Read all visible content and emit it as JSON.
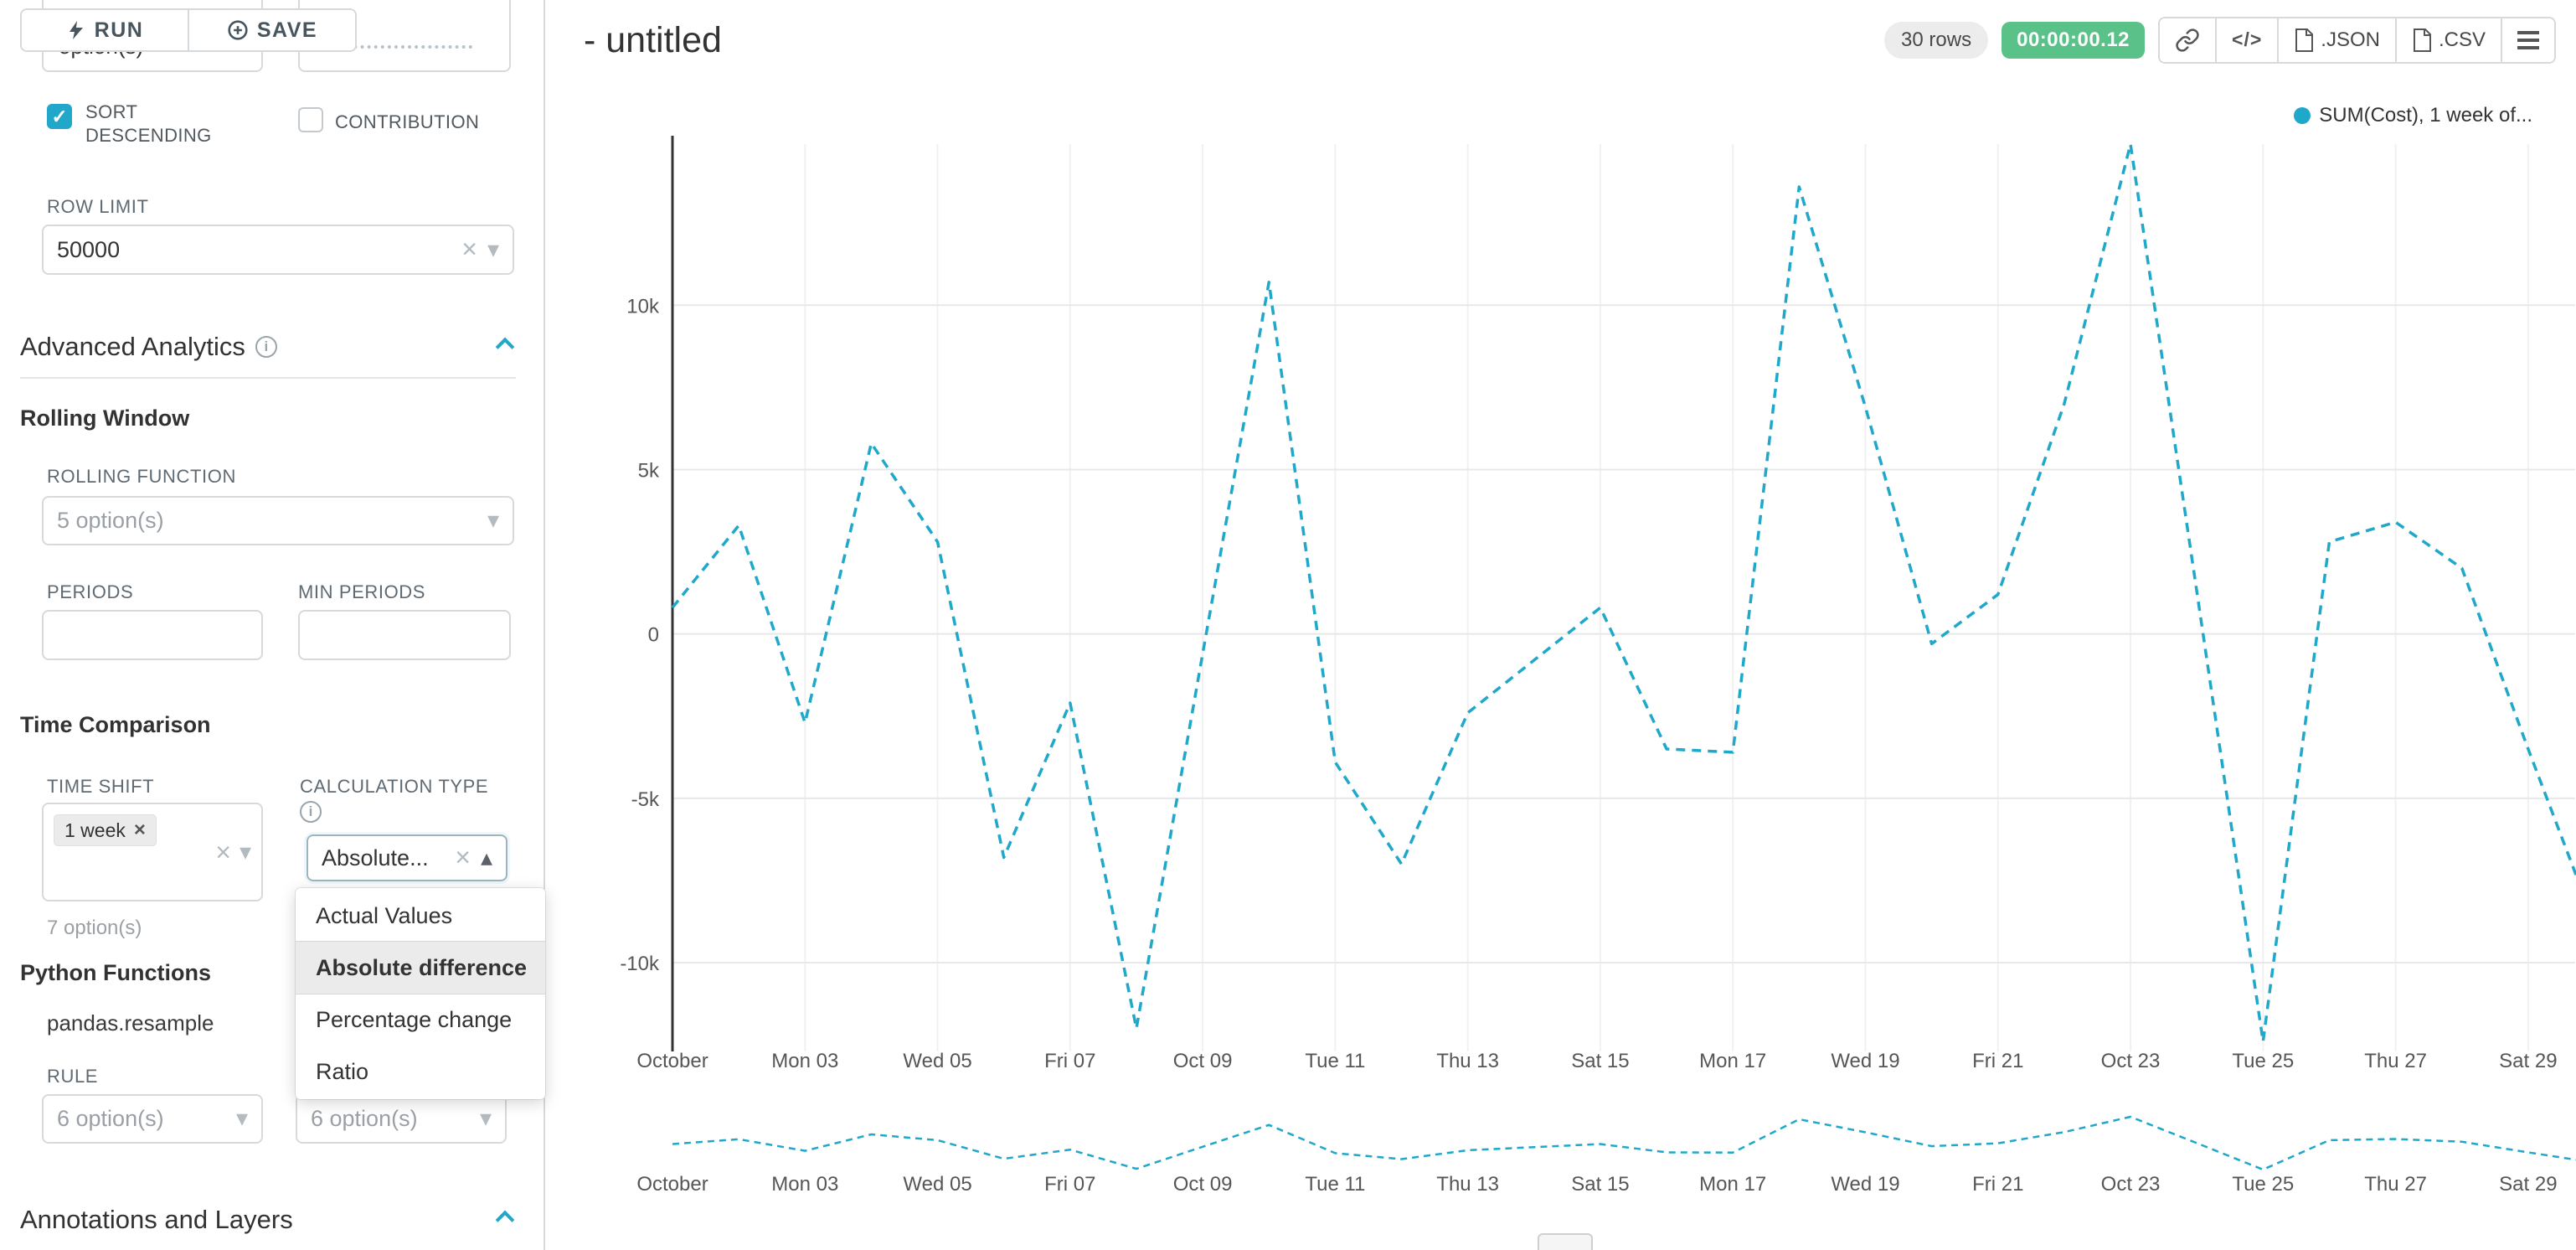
{
  "colors": {
    "accent": "#20A7C9",
    "timer_green": "#5AC189",
    "line_blue": "#1FA8C9"
  },
  "sidebar": {
    "run_button": "RUN",
    "save_button": "SAVE",
    "top_partial_text": "option(s)",
    "sort_descending_label": "SORT DESCENDING",
    "contribution_label": "CONTRIBUTION",
    "row_limit_label": "ROW LIMIT",
    "row_limit_value": "50000",
    "advanced_analytics_title": "Advanced Analytics",
    "rolling_window": {
      "title": "Rolling Window",
      "rolling_function_label": "ROLLING FUNCTION",
      "rolling_function_placeholder": "5 option(s)",
      "periods_label": "PERIODS",
      "min_periods_label": "MIN PERIODS"
    },
    "time_comparison": {
      "title": "Time Comparison",
      "time_shift_label": "TIME SHIFT",
      "time_shift_tag": "1 week",
      "time_shift_hint": "7 option(s)",
      "calculation_type_label": "CALCULATION TYPE",
      "calculation_type_value": "Absolute...",
      "dropdown_options": [
        "Actual Values",
        "Absolute difference",
        "Percentage change",
        "Ratio"
      ],
      "selected_option": "Absolute difference"
    },
    "python_functions": {
      "title": "Python Functions",
      "subtitle": "pandas.resample",
      "rule_label": "RULE",
      "rule_placeholder": "6 option(s)",
      "method_placeholder": "6 option(s)"
    },
    "annotations_title": "Annotations and Layers"
  },
  "header": {
    "title": "- untitled",
    "rows_badge": "30 rows",
    "timer_badge": "00:00:00.12",
    "json_button": ".JSON",
    "csv_button": ".CSV"
  },
  "chart_data": {
    "type": "line",
    "title": "",
    "legend_label": "SUM(Cost), 1 week of...",
    "series_name": "SUM(Cost), 1 week offset",
    "legend_position": "top-right",
    "grid": true,
    "line_color": "#1FA8C9",
    "line_style": "dashed",
    "x": [
      "Oct 01",
      "Oct 02",
      "Oct 03",
      "Oct 04",
      "Oct 05",
      "Oct 06",
      "Oct 07",
      "Oct 08",
      "Oct 09",
      "Oct 10",
      "Oct 11",
      "Oct 12",
      "Oct 13",
      "Oct 14",
      "Oct 15",
      "Oct 16",
      "Oct 17",
      "Oct 18",
      "Oct 19",
      "Oct 20",
      "Oct 21",
      "Oct 22",
      "Oct 23",
      "Oct 24",
      "Oct 25",
      "Oct 26",
      "Oct 27",
      "Oct 28",
      "Oct 29",
      "Oct 30"
    ],
    "values": [
      800,
      3300,
      -2700,
      5800,
      2800,
      -6800,
      -2100,
      -12000,
      -600,
      10700,
      -3900,
      -7000,
      -2400,
      -800,
      800,
      -3500,
      -3600,
      13600,
      6900,
      -300,
      1200,
      7000,
      14900,
      1300,
      -12400,
      2800,
      3400,
      2000,
      -3500,
      -8800
    ],
    "x_tick_labels": [
      "October",
      "Mon 03",
      "Wed 05",
      "Fri 07",
      "Oct 09",
      "Tue 11",
      "Thu 13",
      "Sat 15",
      "Mon 17",
      "Wed 19",
      "Fri 21",
      "Oct 23",
      "Tue 25",
      "Thu 27",
      "Sat 29"
    ],
    "y_ticks": [
      {
        "value": 10000,
        "label": "10k"
      },
      {
        "value": 5000,
        "label": "5k"
      },
      {
        "value": 0,
        "label": "0"
      },
      {
        "value": -5000,
        "label": "-5k"
      },
      {
        "value": -10000,
        "label": "-10k"
      }
    ],
    "ylim": [
      -12700,
      14900
    ],
    "mini_chart": true
  }
}
